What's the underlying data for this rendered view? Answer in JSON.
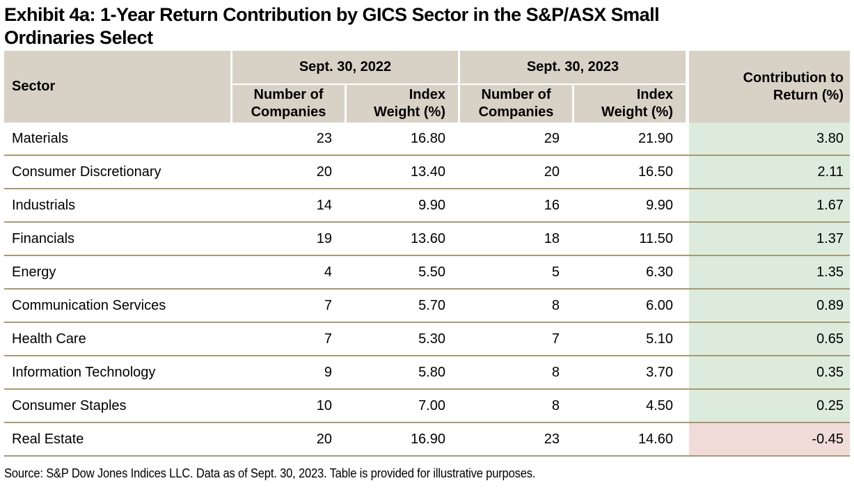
{
  "title": "Exhibit 4a: 1-Year Return Contribution by GICS Sector in the S&P/ASX Small\nOrdinaries Select",
  "table": {
    "sector_header": "Sector",
    "group_2022_label": "Sept. 30, 2022",
    "group_2023_label": "Sept. 30, 2023",
    "companies_header": "Number of\nCompanies",
    "weight_header": "Index\nWeight (%)",
    "contribution_header": "Contribution to\nReturn (%)",
    "rows": [
      {
        "sector": "Materials",
        "companies_2022": "23",
        "weight_2022": "16.80",
        "companies_2023": "29",
        "weight_2023": "21.90",
        "contribution": "3.80"
      },
      {
        "sector": "Consumer Discretionary",
        "companies_2022": "20",
        "weight_2022": "13.40",
        "companies_2023": "20",
        "weight_2023": "16.50",
        "contribution": "2.11"
      },
      {
        "sector": "Industrials",
        "companies_2022": "14",
        "weight_2022": "9.90",
        "companies_2023": "16",
        "weight_2023": "9.90",
        "contribution": "1.67"
      },
      {
        "sector": "Financials",
        "companies_2022": "19",
        "weight_2022": "13.60",
        "companies_2023": "18",
        "weight_2023": "11.50",
        "contribution": "1.37"
      },
      {
        "sector": "Energy",
        "companies_2022": "4",
        "weight_2022": "5.50",
        "companies_2023": "5",
        "weight_2023": "6.30",
        "contribution": "1.35"
      },
      {
        "sector": "Communication Services",
        "companies_2022": "7",
        "weight_2022": "5.70",
        "companies_2023": "8",
        "weight_2023": "6.00",
        "contribution": "0.89"
      },
      {
        "sector": "Health Care",
        "companies_2022": "7",
        "weight_2022": "5.30",
        "companies_2023": "7",
        "weight_2023": "5.10",
        "contribution": "0.65"
      },
      {
        "sector": "Information Technology",
        "companies_2022": "9",
        "weight_2022": "5.80",
        "companies_2023": "8",
        "weight_2023": "3.70",
        "contribution": "0.35"
      },
      {
        "sector": "Consumer Staples",
        "companies_2022": "10",
        "weight_2022": "7.00",
        "companies_2023": "8",
        "weight_2023": "4.50",
        "contribution": "0.25"
      },
      {
        "sector": "Real Estate",
        "companies_2022": "20",
        "weight_2022": "16.90",
        "companies_2023": "23",
        "weight_2023": "14.60",
        "contribution": "-0.45"
      }
    ]
  },
  "source": "Source: S&P Dow Jones Indices LLC. Data as of Sept. 30, 2023. Table is provided for illustrative purposes.",
  "colors": {
    "header_bg": "#d7d1c6",
    "positive_bg": "#dcebdb",
    "negative_bg": "#f0dbd9",
    "row_line": "#a49a73",
    "text": "#000000"
  }
}
